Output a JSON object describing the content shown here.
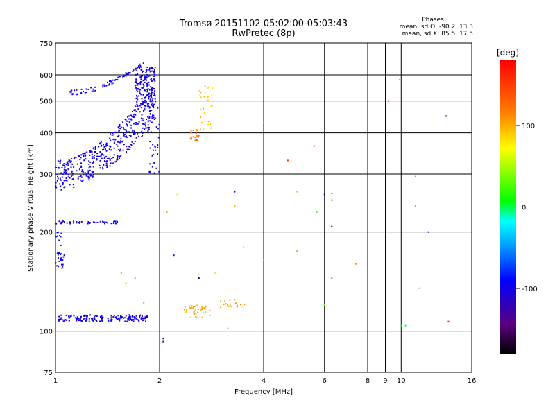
{
  "header": {
    "title_line1": "Tromsø 20151102 05:02:00-05:03:43",
    "title_line2": "RwPretec (8p)",
    "stats_title": "Phases",
    "stats_o": "mean, sd,O: -90.2, 13.3",
    "stats_x": "mean, sd,X:  85.5, 17.5"
  },
  "chart_data": {
    "type": "scatter",
    "title": "Tromsø 20151102 05:02:00-05:03:43",
    "subtitle": "RwPretec (8p)",
    "xlabel": "Frequency [MHz]",
    "ylabel": "Stationary phase Virtual Height [km]",
    "xscale": "log",
    "yscale": "log",
    "xlim": [
      1,
      16
    ],
    "ylim": [
      75,
      750
    ],
    "x_ticks": [
      1,
      2,
      4,
      6,
      8,
      10,
      16
    ],
    "x_minor_ticks": [
      9
    ],
    "y_ticks": [
      75,
      100,
      200,
      300,
      400,
      500,
      600,
      750
    ],
    "grid": true,
    "colorbar": {
      "label": "[deg]",
      "range": [
        -180,
        180
      ],
      "ticks": [
        100,
        0,
        -100
      ]
    },
    "point_groups": [
      {
        "x": [
          1.02,
          1.85
        ],
        "y": [
          107,
          112
        ],
        "n": 170,
        "phase": -100
      },
      {
        "x": [
          1.0,
          1.06
        ],
        "y": [
          155,
          175
        ],
        "n": 25,
        "phase": -100
      },
      {
        "x": [
          1.0,
          1.04
        ],
        "y": [
          182,
          200
        ],
        "n": 10,
        "phase": -95
      },
      {
        "x": [
          1.0,
          1.55
        ],
        "y": [
          212,
          216
        ],
        "n": 45,
        "phase": -100
      },
      {
        "x": [
          1.7,
          1.95
        ],
        "y": [
          480,
          640
        ],
        "n": 160,
        "phase": -100
      },
      {
        "x": [
          1.85,
          2.0
        ],
        "y": [
          300,
          480
        ],
        "n": 40,
        "phase": -100
      },
      {
        "x": [
          2.35,
          2.8
        ],
        "y": [
          110,
          120
        ],
        "n": 40,
        "phase": 100
      },
      {
        "x": [
          3.0,
          3.55
        ],
        "y": [
          118,
          125
        ],
        "n": 18,
        "phase": 105
      },
      {
        "x": [
          2.45,
          2.6
        ],
        "y": [
          380,
          410
        ],
        "n": 25,
        "phase": 120
      },
      {
        "x": [
          2.6,
          2.85
        ],
        "y": [
          410,
          560
        ],
        "n": 30,
        "phase": 90
      }
    ],
    "point_bands": [
      {
        "x": [
          1.0,
          1.95
        ],
        "y_start": [
          268,
          330
        ],
        "y_end": [
          430,
          560
        ],
        "n": 420,
        "phase": -100
      },
      {
        "x": [
          1.1,
          1.8
        ],
        "y_start": [
          520,
          540
        ],
        "y_end": [
          650,
          660
        ],
        "n": 70,
        "phase": -100
      }
    ],
    "points": [
      {
        "x": 9.9,
        "y": 580,
        "phase": 0
      },
      {
        "x": 9.2,
        "y": 500,
        "phase": 160
      },
      {
        "x": 13.5,
        "y": 450,
        "phase": -110
      },
      {
        "x": 4.0,
        "y": 430,
        "phase": 110
      },
      {
        "x": 5.6,
        "y": 365,
        "phase": 150
      },
      {
        "x": 4.7,
        "y": 330,
        "phase": 160
      },
      {
        "x": 3.3,
        "y": 265,
        "phase": -110
      },
      {
        "x": 5.0,
        "y": 265,
        "phase": 100
      },
      {
        "x": 6.0,
        "y": 260,
        "phase": -120
      },
      {
        "x": 6.3,
        "y": 262,
        "phase": 150
      },
      {
        "x": 6.3,
        "y": 250,
        "phase": 170
      },
      {
        "x": 11.0,
        "y": 295,
        "phase": 110
      },
      {
        "x": 11.0,
        "y": 240,
        "phase": 110
      },
      {
        "x": 6.3,
        "y": 208,
        "phase": -100
      },
      {
        "x": 12.0,
        "y": 200,
        "phase": -100
      },
      {
        "x": 5.7,
        "y": 230,
        "phase": 20
      },
      {
        "x": 3.3,
        "y": 240,
        "phase": 100
      },
      {
        "x": 3.5,
        "y": 180,
        "phase": 60
      },
      {
        "x": 4.0,
        "y": 165,
        "phase": 100
      },
      {
        "x": 5.0,
        "y": 175,
        "phase": 110
      },
      {
        "x": 7.4,
        "y": 160,
        "phase": 110
      },
      {
        "x": 6.3,
        "y": 145,
        "phase": 120
      },
      {
        "x": 11.3,
        "y": 135,
        "phase": 20
      },
      {
        "x": 6.0,
        "y": 120,
        "phase": 20
      },
      {
        "x": 10.0,
        "y": 104,
        "phase": 10
      },
      {
        "x": 10.3,
        "y": 104,
        "phase": 0
      },
      {
        "x": 13.7,
        "y": 107,
        "phase": 170
      },
      {
        "x": 2.05,
        "y": 95,
        "phase": -110
      },
      {
        "x": 2.05,
        "y": 93,
        "phase": -110
      },
      {
        "x": 3.15,
        "y": 102,
        "phase": 100
      },
      {
        "x": 2.9,
        "y": 150,
        "phase": 60
      },
      {
        "x": 2.6,
        "y": 145,
        "phase": -100
      },
      {
        "x": 1.55,
        "y": 150,
        "phase": 20
      },
      {
        "x": 1.6,
        "y": 140,
        "phase": 90
      },
      {
        "x": 1.7,
        "y": 145,
        "phase": 100
      },
      {
        "x": 1.8,
        "y": 122,
        "phase": 120
      },
      {
        "x": 2.2,
        "y": 170,
        "phase": -100
      },
      {
        "x": 2.1,
        "y": 230,
        "phase": 100
      },
      {
        "x": 2.25,
        "y": 260,
        "phase": 80
      }
    ]
  }
}
